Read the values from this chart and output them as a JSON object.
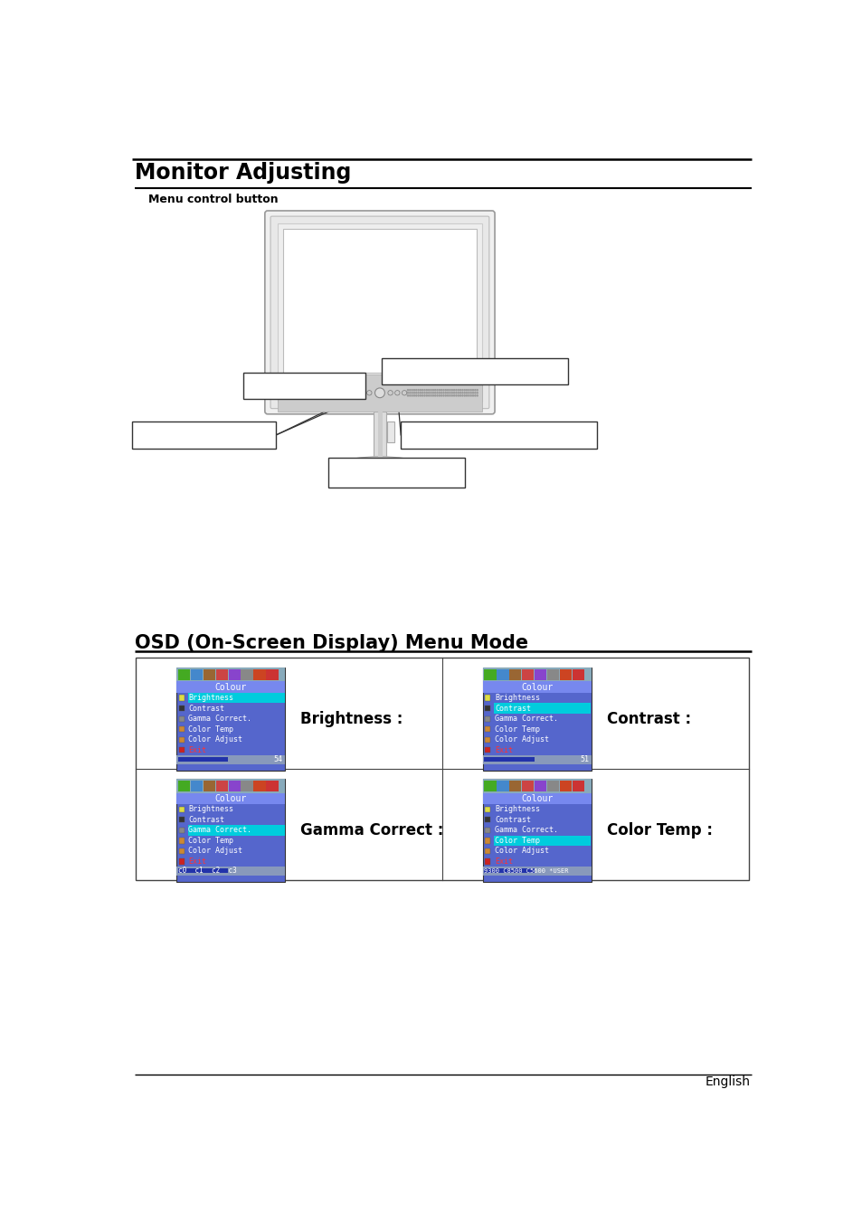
{
  "page_title": "Monitor Adjusting",
  "section1_subtitle": "Menu control button",
  "section2_title": "OSD (On-Screen Display) Menu Mode",
  "footer_text": "English",
  "osd_labels": [
    "Brightness :",
    "Contrast :",
    "Gamma Correct :",
    "Color Temp :"
  ],
  "osd_menu_items": [
    "Brightness",
    "Contrast",
    "Gamma Correct.",
    "Color Temp",
    "Color Adjust",
    "Exit"
  ],
  "bg_color": "#ffffff",
  "title_color": "#000000",
  "monitor_body_color": "#e8e8e8",
  "monitor_edge_color": "#aaaaaa",
  "monitor_screen_color": "#ffffff",
  "monitor_bottom_color": "#cccccc",
  "callout_line_color": "#333333",
  "osd_bg": "#5566cc",
  "osd_toolbar_bg": "#7799bb",
  "osd_title_bg": "#6677dd",
  "osd_highlight": "#00ccee",
  "osd_text": "#ffffff",
  "osd_exit_color": "#ff3333",
  "osd_bottom_bg": "#99aabb",
  "osd_progress": "#3344aa",
  "grid_color": "#444444"
}
